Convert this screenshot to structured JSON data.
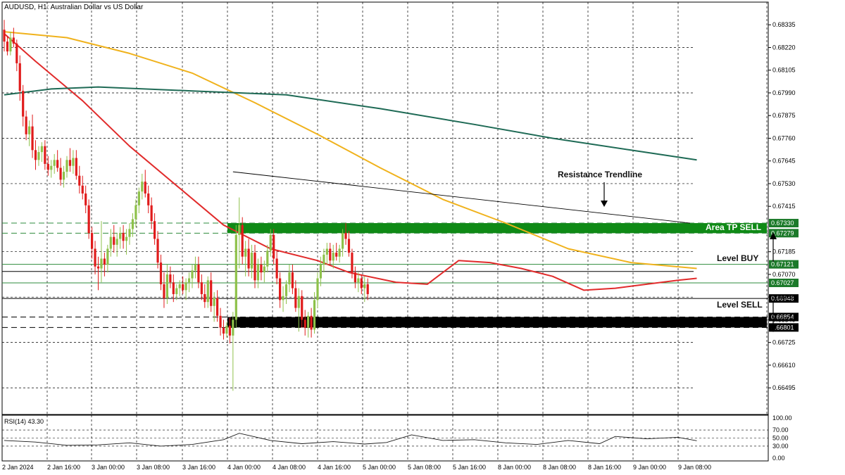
{
  "chart_data": {
    "type": "candlestick",
    "title": "AUDUSD, H1:  Australian Dollar vs US Dollar",
    "timeframe": "H1",
    "symbol": "AUDUSD",
    "ylim": [
      0.6636,
      0.6845
    ],
    "y_ticks": [
      "0.68335",
      "0.68220",
      "0.68105",
      "0.67990",
      "0.67875",
      "0.67760",
      "0.67645",
      "0.67530",
      "0.67415",
      "0.67185",
      "0.67070",
      "0.66955",
      "0.66840",
      "0.66725",
      "0.66610",
      "0.66495"
    ],
    "x_ticks": [
      "2 Jan 2024",
      "2 Jan 16:00",
      "3 Jan 00:00",
      "3 Jan 08:00",
      "3 Jan 16:00",
      "4 Jan 00:00",
      "4 Jan 08:00",
      "4 Jan 16:00",
      "5 Jan 00:00",
      "5 Jan 08:00",
      "5 Jan 16:00",
      "8 Jan 00:00",
      "8 Jan 08:00",
      "8 Jan 16:00",
      "9 Jan 00:00",
      "9 Jan 08:00"
    ],
    "grid": true,
    "bull_color": "#8ec14a",
    "bear_color": "#e01b1b",
    "candles": [
      [
        0.6831,
        0.6836,
        0.682,
        0.6825
      ],
      [
        0.6825,
        0.6828,
        0.6818,
        0.682
      ],
      [
        0.682,
        0.683,
        0.6818,
        0.6827
      ],
      [
        0.6827,
        0.6832,
        0.6822,
        0.6824
      ],
      [
        0.6824,
        0.6826,
        0.681,
        0.6814
      ],
      [
        0.6814,
        0.6818,
        0.6795,
        0.68
      ],
      [
        0.68,
        0.6803,
        0.6782,
        0.6787
      ],
      [
        0.6787,
        0.679,
        0.6775,
        0.6778
      ],
      [
        0.6778,
        0.6785,
        0.6772,
        0.6782
      ],
      [
        0.6782,
        0.6788,
        0.6766,
        0.677
      ],
      [
        0.677,
        0.6775,
        0.676,
        0.6765
      ],
      [
        0.6765,
        0.6772,
        0.6762,
        0.6769
      ],
      [
        0.6769,
        0.6774,
        0.6764,
        0.6772
      ],
      [
        0.6772,
        0.6775,
        0.676,
        0.6763
      ],
      [
        0.6763,
        0.6767,
        0.6757,
        0.676
      ],
      [
        0.676,
        0.6765,
        0.6756,
        0.6762
      ],
      [
        0.6762,
        0.6768,
        0.6758,
        0.6765
      ],
      [
        0.6765,
        0.677,
        0.6759,
        0.6761
      ],
      [
        0.6761,
        0.6766,
        0.6752,
        0.6755
      ],
      [
        0.6755,
        0.6762,
        0.6751,
        0.6759
      ],
      [
        0.6759,
        0.6767,
        0.6756,
        0.6765
      ],
      [
        0.6765,
        0.6771,
        0.6759,
        0.6762
      ],
      [
        0.6762,
        0.677,
        0.6758,
        0.6766
      ],
      [
        0.6766,
        0.677,
        0.6755,
        0.6757
      ],
      [
        0.6757,
        0.6762,
        0.6748,
        0.6752
      ],
      [
        0.6752,
        0.6757,
        0.6745,
        0.6748
      ],
      [
        0.6748,
        0.6752,
        0.6738,
        0.6742
      ],
      [
        0.6742,
        0.6745,
        0.6725,
        0.6728
      ],
      [
        0.6728,
        0.6731,
        0.6715,
        0.672
      ],
      [
        0.672,
        0.6724,
        0.6707,
        0.6711
      ],
      [
        0.6711,
        0.6716,
        0.6699,
        0.671
      ],
      [
        0.671,
        0.6734,
        0.6703,
        0.6715
      ],
      [
        0.6715,
        0.6718,
        0.6706,
        0.6712
      ],
      [
        0.6712,
        0.6722,
        0.6708,
        0.672
      ],
      [
        0.672,
        0.673,
        0.6716,
        0.6726
      ],
      [
        0.6726,
        0.6732,
        0.6718,
        0.6722
      ],
      [
        0.6722,
        0.6728,
        0.6716,
        0.6725
      ],
      [
        0.6725,
        0.6731,
        0.672,
        0.6728
      ],
      [
        0.6728,
        0.6732,
        0.672,
        0.6724
      ],
      [
        0.6724,
        0.673,
        0.6717,
        0.6726
      ],
      [
        0.6726,
        0.6733,
        0.6722,
        0.673
      ],
      [
        0.673,
        0.6738,
        0.6726,
        0.6735
      ],
      [
        0.6735,
        0.6745,
        0.6731,
        0.6742
      ],
      [
        0.6742,
        0.6751,
        0.6738,
        0.6749
      ],
      [
        0.6749,
        0.6758,
        0.6745,
        0.6754
      ],
      [
        0.6754,
        0.676,
        0.6746,
        0.6748
      ],
      [
        0.6748,
        0.6752,
        0.6738,
        0.6742
      ],
      [
        0.6742,
        0.6746,
        0.673,
        0.6734
      ],
      [
        0.6734,
        0.6738,
        0.6722,
        0.6725
      ],
      [
        0.6725,
        0.6729,
        0.671,
        0.6713
      ],
      [
        0.6713,
        0.6717,
        0.6699,
        0.6702
      ],
      [
        0.6702,
        0.6708,
        0.669,
        0.6695
      ],
      [
        0.6695,
        0.6712,
        0.6692,
        0.6707
      ],
      [
        0.6707,
        0.6711,
        0.67,
        0.6703
      ],
      [
        0.6703,
        0.6707,
        0.6693,
        0.6697
      ],
      [
        0.6697,
        0.6702,
        0.6694,
        0.67
      ],
      [
        0.67,
        0.6704,
        0.6696,
        0.6702
      ],
      [
        0.6702,
        0.6706,
        0.6697,
        0.6699
      ],
      [
        0.6699,
        0.6705,
        0.6694,
        0.6703
      ],
      [
        0.6703,
        0.6708,
        0.6698,
        0.6705
      ],
      [
        0.6705,
        0.6712,
        0.67,
        0.6709
      ],
      [
        0.6709,
        0.6716,
        0.6705,
        0.6712
      ],
      [
        0.6712,
        0.6716,
        0.67,
        0.6703
      ],
      [
        0.6703,
        0.6707,
        0.6694,
        0.6697
      ],
      [
        0.6697,
        0.6702,
        0.669,
        0.6693
      ],
      [
        0.6693,
        0.6706,
        0.669,
        0.6704
      ],
      [
        0.6704,
        0.6708,
        0.6688,
        0.6691
      ],
      [
        0.6691,
        0.6698,
        0.6683,
        0.6695
      ],
      [
        0.6695,
        0.6699,
        0.6683,
        0.6686
      ],
      [
        0.6686,
        0.669,
        0.6676,
        0.668
      ],
      [
        0.668,
        0.6684,
        0.6674,
        0.6677
      ],
      [
        0.6677,
        0.6683,
        0.6675,
        0.6681
      ],
      [
        0.6681,
        0.6685,
        0.6672,
        0.6676
      ],
      [
        0.6676,
        0.6688,
        0.6648,
        0.6684
      ],
      [
        0.6684,
        0.6732,
        0.668,
        0.6727
      ],
      [
        0.6727,
        0.6746,
        0.671,
        0.6732
      ],
      [
        0.6732,
        0.6736,
        0.6712,
        0.6716
      ],
      [
        0.6716,
        0.6724,
        0.6706,
        0.672
      ],
      [
        0.672,
        0.6725,
        0.6706,
        0.671
      ],
      [
        0.671,
        0.6722,
        0.6705,
        0.6718
      ],
      [
        0.6718,
        0.6722,
        0.67,
        0.6704
      ],
      [
        0.6704,
        0.6715,
        0.67,
        0.6712
      ],
      [
        0.6712,
        0.6716,
        0.6704,
        0.6708
      ],
      [
        0.6708,
        0.6714,
        0.6703,
        0.6711
      ],
      [
        0.6711,
        0.6722,
        0.6708,
        0.6719
      ],
      [
        0.6719,
        0.673,
        0.6716,
        0.6727
      ],
      [
        0.6727,
        0.673,
        0.6712,
        0.6715
      ],
      [
        0.6715,
        0.6719,
        0.6702,
        0.6705
      ],
      [
        0.6705,
        0.6708,
        0.669,
        0.6694
      ],
      [
        0.6694,
        0.6701,
        0.6688,
        0.6696
      ],
      [
        0.6696,
        0.6704,
        0.6692,
        0.6702
      ],
      [
        0.6702,
        0.6712,
        0.6698,
        0.6708
      ],
      [
        0.6708,
        0.6712,
        0.6697,
        0.67
      ],
      [
        0.67,
        0.6704,
        0.6688,
        0.669
      ],
      [
        0.669,
        0.67,
        0.6678,
        0.6696
      ],
      [
        0.6696,
        0.6699,
        0.668,
        0.6684
      ],
      [
        0.6684,
        0.6689,
        0.6676,
        0.668
      ],
      [
        0.668,
        0.6688,
        0.6675,
        0.6686
      ],
      [
        0.6686,
        0.669,
        0.6675,
        0.6679
      ],
      [
        0.6679,
        0.6698,
        0.6677,
        0.6694
      ],
      [
        0.6694,
        0.6708,
        0.669,
        0.6705
      ],
      [
        0.6705,
        0.6716,
        0.6701,
        0.6712
      ],
      [
        0.6712,
        0.672,
        0.6708,
        0.6717
      ],
      [
        0.6717,
        0.6723,
        0.6712,
        0.672
      ],
      [
        0.672,
        0.6723,
        0.6712,
        0.6714
      ],
      [
        0.6714,
        0.6722,
        0.671,
        0.6718
      ],
      [
        0.6718,
        0.6723,
        0.6714,
        0.6716
      ],
      [
        0.6716,
        0.6722,
        0.6713,
        0.672
      ],
      [
        0.672,
        0.673,
        0.6716,
        0.6728
      ],
      [
        0.6728,
        0.6733,
        0.6722,
        0.6725
      ],
      [
        0.6725,
        0.6729,
        0.6716,
        0.6718
      ],
      [
        0.6718,
        0.672,
        0.6705,
        0.6708
      ],
      [
        0.6708,
        0.6711,
        0.67,
        0.6703
      ],
      [
        0.6703,
        0.6708,
        0.6698,
        0.6705
      ],
      [
        0.6705,
        0.6707,
        0.6697,
        0.67
      ],
      [
        0.67,
        0.6706,
        0.6693,
        0.6702
      ],
      [
        0.6702,
        0.6705,
        0.6694,
        0.6697
      ]
    ],
    "ma_lines": [
      {
        "color": "#e12b2b",
        "values": [
          [
            0,
            0.6829
          ],
          [
            10,
            0.6815
          ],
          [
            25,
            0.6795
          ],
          [
            40,
            0.6772
          ],
          [
            55,
            0.6752
          ],
          [
            70,
            0.6732
          ],
          [
            85,
            0.672
          ],
          [
            100,
            0.6714
          ],
          [
            110,
            0.6708
          ],
          [
            125,
            0.6703
          ],
          [
            135,
            0.6702
          ],
          [
            145,
            0.6714
          ],
          [
            155,
            0.6713
          ],
          [
            165,
            0.671
          ],
          [
            175,
            0.6706
          ],
          [
            185,
            0.6699
          ],
          [
            195,
            0.67
          ],
          [
            205,
            0.6702
          ],
          [
            215,
            0.6704
          ],
          [
            221,
            0.6705
          ]
        ]
      },
      {
        "color": "#f0b21c",
        "values": [
          [
            0,
            0.683
          ],
          [
            20,
            0.6827
          ],
          [
            40,
            0.6819
          ],
          [
            60,
            0.6809
          ],
          [
            80,
            0.6794
          ],
          [
            100,
            0.6778
          ],
          [
            120,
            0.6761
          ],
          [
            140,
            0.6745
          ],
          [
            160,
            0.6733
          ],
          [
            180,
            0.672
          ],
          [
            200,
            0.6713
          ],
          [
            221,
            0.671
          ]
        ]
      },
      {
        "color": "#1e6a55",
        "values": [
          [
            0,
            0.6798
          ],
          [
            15,
            0.6801
          ],
          [
            30,
            0.6802
          ],
          [
            60,
            0.68
          ],
          [
            90,
            0.6798
          ],
          [
            120,
            0.6791
          ],
          [
            150,
            0.6783
          ],
          [
            175,
            0.6776
          ],
          [
            200,
            0.677
          ],
          [
            221,
            0.6765
          ]
        ]
      }
    ],
    "trendline": {
      "from": [
        0.6759,
        73
      ],
      "to": [
        0.6733,
        180
      ]
    },
    "levels": [
      {
        "price": 0.6733,
        "label": "0.67330",
        "style": "dashed",
        "color": "#2e8b3c"
      },
      {
        "price": 0.67279,
        "label": "0.67279",
        "style": "dashed",
        "color": "#2e8b3c"
      },
      {
        "price": 0.67121,
        "label": "0.67121",
        "style": "solid",
        "color": "#2e8b3c"
      },
      {
        "price": 0.67027,
        "label": "0.67027",
        "style": "solid",
        "color": "#2e8b3c"
      },
      {
        "price": 0.66948,
        "label": "0.66948",
        "style": "solid",
        "color": "#000000"
      },
      {
        "price": 0.66854,
        "label": "0.66854",
        "style": "dashed",
        "color": "#000000"
      },
      {
        "price": 0.66801,
        "label": "0.66801",
        "style": "dashed",
        "color": "#000000"
      }
    ],
    "zones": [
      {
        "top": 0.6733,
        "bottom": 0.67279,
        "color": "#0f8a16",
        "label": "Area TP SELL"
      },
      {
        "top": 0.66854,
        "bottom": 0.66801,
        "color": "#000000",
        "label": ""
      }
    ],
    "annotations": [
      "Resistance Trendline",
      "Level BUY",
      "Level SELL"
    ],
    "rsi": {
      "label": "RSI(14) 43.30",
      "ylim": [
        0,
        100
      ],
      "ticks": [
        "70.00",
        "50.00",
        "30.00",
        "0.00"
      ],
      "top_label": "100.00",
      "levels": [
        70,
        50,
        30
      ],
      "values": [
        [
          0,
          44
        ],
        [
          10,
          40
        ],
        [
          20,
          32
        ],
        [
          30,
          33
        ],
        [
          40,
          38
        ],
        [
          50,
          30
        ],
        [
          60,
          34
        ],
        [
          70,
          46
        ],
        [
          75,
          62
        ],
        [
          85,
          44
        ],
        [
          95,
          36
        ],
        [
          105,
          41
        ],
        [
          115,
          35
        ],
        [
          122,
          39
        ],
        [
          130,
          58
        ],
        [
          140,
          44
        ],
        [
          150,
          46
        ],
        [
          160,
          38
        ],
        [
          170,
          34
        ],
        [
          180,
          44
        ],
        [
          190,
          36
        ],
        [
          195,
          54
        ],
        [
          205,
          48
        ],
        [
          215,
          52
        ],
        [
          221,
          43.3
        ]
      ]
    }
  }
}
